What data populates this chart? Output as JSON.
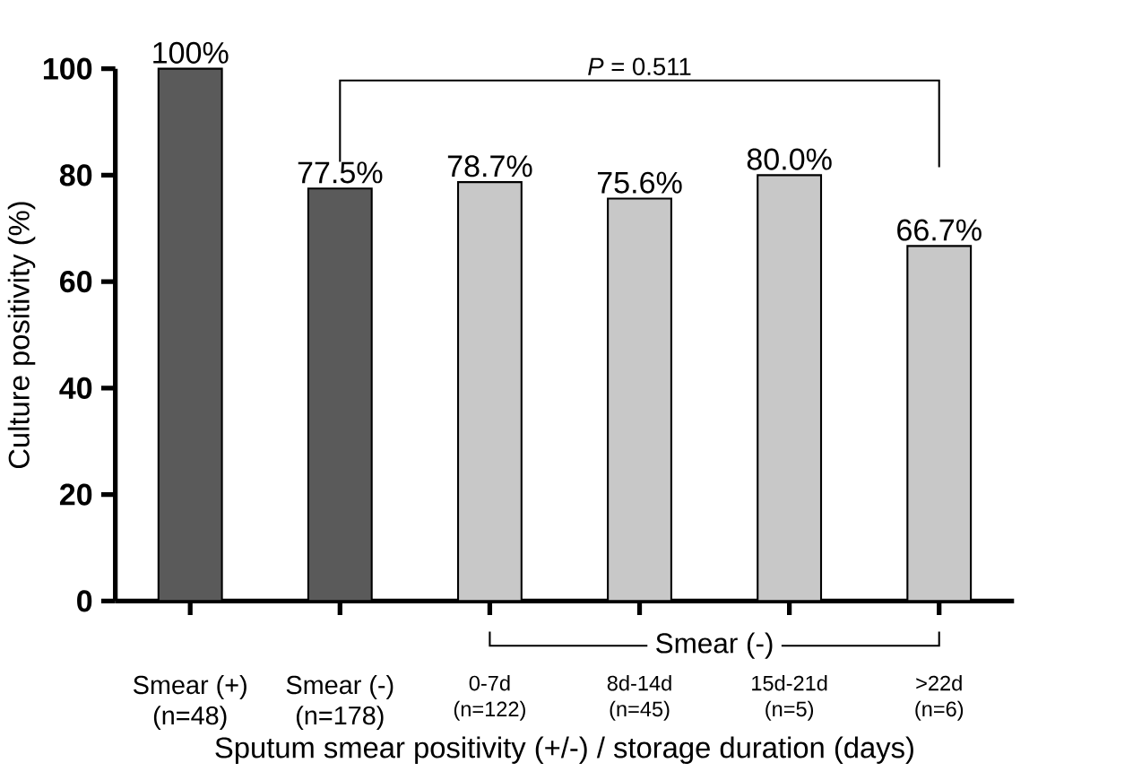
{
  "chart_data": {
    "type": "bar",
    "xlabel": "Sputum smear positivity (+/-) /  storage duration (days)",
    "ylabel": "Culture positivity (%)",
    "categories": [
      "Smear (+) (n=48)",
      "Smear (-) (n=178)",
      "0-7d (n=122)",
      "8d-14d (n=45)",
      "15d-21d (n=5)",
      ">22d (n=6)"
    ],
    "values": [
      100,
      77.5,
      78.7,
      75.6,
      80.0,
      66.7
    ],
    "value_labels": [
      "100%",
      "77.5%",
      "78.7%",
      "75.6%",
      "80.0%",
      "66.7%"
    ],
    "colors": [
      "#5a5a5a",
      "#5a5a5a",
      "#c8c8c8",
      "#c8c8c8",
      "#c8c8c8",
      "#c8c8c8"
    ],
    "ylim": [
      0,
      100
    ],
    "yticks": [
      0,
      20,
      40,
      60,
      80,
      100
    ],
    "annotations": [
      "*P* = 0.511",
      "Smear (-)"
    ]
  }
}
